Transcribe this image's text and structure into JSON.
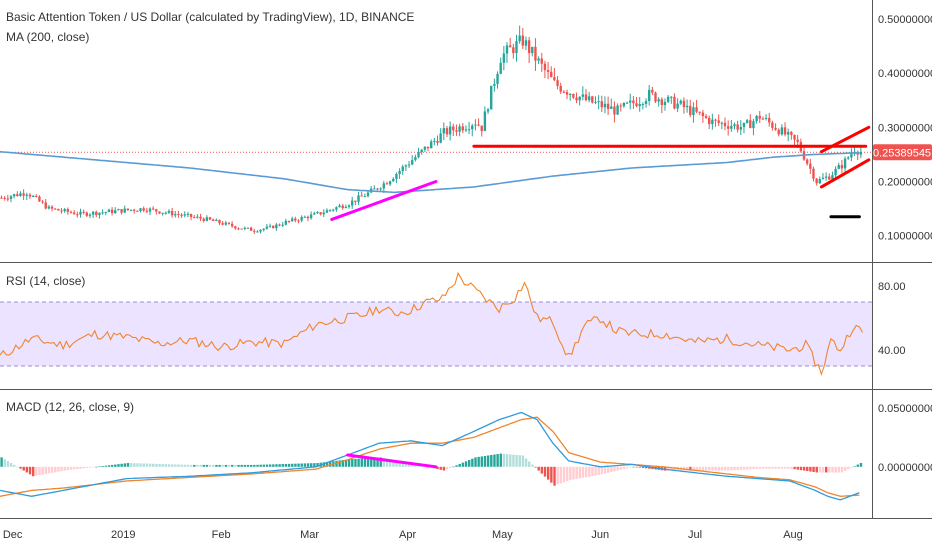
{
  "chart_data": [
    {
      "type": "candlestick",
      "title": "Basic Attention Token / US Dollar (calculated by TradingView), 1D, BINANCE",
      "overlay_label": "MA (200, close)",
      "x_ticks": [
        "Dec",
        "2019",
        "Feb",
        "Mar",
        "Apr",
        "May",
        "Jun",
        "Jul",
        "Aug"
      ],
      "y_ticks": [
        "0.10000000",
        "0.20000000",
        "0.30000000",
        "0.40000000",
        "0.50000000"
      ],
      "ylim": [
        0.07,
        0.52
      ],
      "last_price": "0.25389545",
      "colors": {
        "up": "#26a69a",
        "down": "#ef5350",
        "ma": "#5b9bd5",
        "trend": "#ff0000",
        "trend_up": "#ff00ff",
        "price_label_bg": "#ef5350"
      },
      "ma_200": {
        "days": [
          0,
          30,
          60,
          90,
          110,
          125,
          150,
          175,
          200,
          230,
          245,
          258,
          272
        ],
        "values": [
          0.255,
          0.24,
          0.225,
          0.205,
          0.185,
          0.18,
          0.19,
          0.21,
          0.225,
          0.235,
          0.245,
          0.25,
          0.253
        ]
      },
      "price_anchors": {
        "days": [
          0,
          8,
          15,
          25,
          35,
          45,
          55,
          65,
          75,
          80,
          85,
          90,
          100,
          110,
          115,
          118,
          122,
          130,
          140,
          150,
          152,
          158,
          165,
          175,
          185,
          195,
          205,
          215,
          225,
          235,
          240,
          245,
          252,
          258,
          262,
          266,
          270,
          272
        ],
        "values": [
          0.17,
          0.18,
          0.15,
          0.14,
          0.145,
          0.15,
          0.14,
          0.13,
          0.115,
          0.11,
          0.115,
          0.125,
          0.14,
          0.16,
          0.175,
          0.185,
          0.2,
          0.24,
          0.29,
          0.31,
          0.3,
          0.43,
          0.46,
          0.38,
          0.35,
          0.33,
          0.36,
          0.34,
          0.31,
          0.3,
          0.32,
          0.3,
          0.27,
          0.2,
          0.21,
          0.23,
          0.26,
          0.255
        ]
      },
      "annotations": [
        {
          "kind": "hline",
          "color": "trend",
          "from_day": 150,
          "to_day": 274,
          "y": 0.265
        },
        {
          "kind": "line",
          "color": "trend_up",
          "from_day": 105,
          "y1": 0.13,
          "to_day": 138,
          "y2": 0.2
        },
        {
          "kind": "line",
          "color": "trend",
          "from_day": 260,
          "y1": 0.255,
          "to_day": 275,
          "y2": 0.3
        },
        {
          "kind": "line",
          "color": "trend",
          "from_day": 260,
          "y1": 0.19,
          "to_day": 275,
          "y2": 0.24
        },
        {
          "kind": "hline",
          "color": "#000000",
          "from_day": 263,
          "to_day": 272,
          "y": 0.135
        }
      ]
    },
    {
      "type": "line",
      "title": "RSI (14, close)",
      "y_ticks": [
        "40.00",
        "80.00"
      ],
      "ylim": [
        20,
        90
      ],
      "band": [
        30,
        70
      ],
      "series": {
        "days": [
          0,
          10,
          20,
          30,
          40,
          50,
          60,
          70,
          80,
          90,
          100,
          105,
          110,
          115,
          120,
          125,
          130,
          135,
          140,
          145,
          150,
          155,
          158,
          163,
          166,
          170,
          175,
          180,
          185,
          190,
          195,
          200,
          210,
          220,
          230,
          240,
          250,
          255,
          260,
          263,
          266,
          270,
          273
        ],
        "values": [
          36,
          47,
          43,
          50,
          48,
          44,
          46,
          42,
          45,
          44,
          56,
          58,
          60,
          62,
          66,
          63,
          65,
          70,
          72,
          86,
          78,
          70,
          66,
          73,
          82,
          60,
          58,
          35,
          55,
          60,
          52,
          50,
          50,
          45,
          47,
          43,
          40,
          43,
          26,
          46,
          40,
          55,
          51
        ]
      }
    },
    {
      "type": "macd",
      "title": "MACD (12, 26, close, 9)",
      "y_ticks": [
        "0.00000000",
        "0.05000000"
      ],
      "ylim": [
        -0.04,
        0.06
      ],
      "macd_line": {
        "days": [
          0,
          10,
          20,
          30,
          40,
          60,
          80,
          100,
          110,
          120,
          130,
          140,
          150,
          158,
          165,
          170,
          175,
          180,
          190,
          200,
          210,
          220,
          230,
          240,
          250,
          258,
          262,
          266,
          272
        ],
        "values": [
          -0.02,
          -0.025,
          -0.02,
          -0.015,
          -0.01,
          -0.008,
          -0.005,
          0,
          0.01,
          0.02,
          0.022,
          0.018,
          0.03,
          0.04,
          0.046,
          0.04,
          0.02,
          0.005,
          0,
          0.002,
          -0.002,
          -0.005,
          -0.008,
          -0.01,
          -0.012,
          -0.02,
          -0.025,
          -0.028,
          -0.022
        ]
      },
      "signal_line": {
        "days": [
          0,
          10,
          20,
          30,
          40,
          60,
          80,
          100,
          110,
          120,
          130,
          140,
          150,
          158,
          165,
          170,
          175,
          180,
          190,
          200,
          210,
          220,
          230,
          240,
          250,
          258,
          262,
          266,
          272
        ],
        "values": [
          -0.025,
          -0.02,
          -0.018,
          -0.015,
          -0.012,
          -0.009,
          -0.006,
          -0.002,
          0.006,
          0.015,
          0.02,
          0.02,
          0.025,
          0.033,
          0.04,
          0.042,
          0.03,
          0.012,
          0.004,
          0.002,
          0,
          -0.003,
          -0.006,
          -0.009,
          -0.011,
          -0.017,
          -0.022,
          -0.025,
          -0.024
        ]
      },
      "divergence": {
        "from_day": 110,
        "y1": 0.01,
        "to_day": 138,
        "y2": 0.0
      }
    }
  ]
}
